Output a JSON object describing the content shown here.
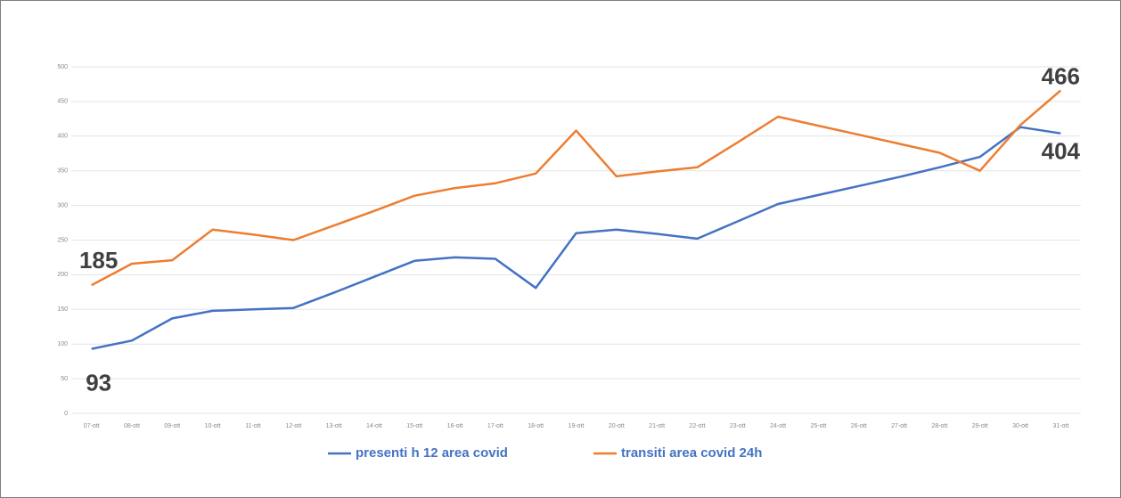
{
  "chart_data": {
    "type": "line",
    "categories": [
      "07-ott",
      "08-ott",
      "09-ott",
      "10-ott",
      "11-ott",
      "12-ott",
      "13-ott",
      "14-ott",
      "15-ott",
      "16-ott",
      "17-ott",
      "18-ott",
      "19-ott",
      "20-ott",
      "21-ott",
      "22-ott",
      "23-ott",
      "24-ott",
      "25-ott",
      "26-ott",
      "27-ott",
      "28-ott",
      "29-ott",
      "30-ott",
      "31-ott"
    ],
    "series": [
      {
        "name": "presenti h 12 area covid",
        "color": "#4472c4",
        "values": [
          93,
          105,
          137,
          148,
          150,
          152,
          174,
          197,
          220,
          225,
          223,
          181,
          260,
          265,
          259,
          252,
          277,
          302,
          315,
          328,
          341,
          355,
          370,
          413,
          404
        ]
      },
      {
        "name": "transiti area covid 24h",
        "color": "#ed7d31",
        "values": [
          185,
          216,
          221,
          265,
          258,
          250,
          271,
          292,
          314,
          325,
          332,
          346,
          408,
          342,
          349,
          355,
          391,
          428,
          415,
          402,
          389,
          376,
          350,
          416,
          466
        ]
      }
    ],
    "ylim": [
      0,
      500
    ],
    "yticks": [
      0,
      50,
      100,
      150,
      200,
      250,
      300,
      350,
      400,
      450,
      500
    ],
    "grid": true,
    "legend": "bottom"
  }
}
